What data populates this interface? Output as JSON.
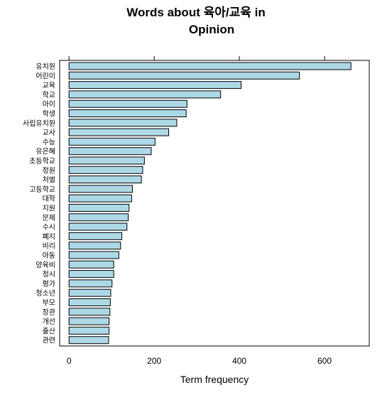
{
  "chart_data": {
    "type": "bar",
    "orientation": "horizontal",
    "title_line1": "Words about 육아/교육 in",
    "title_line2": "Opinion",
    "xlabel": "Term frequency",
    "ylabel": "",
    "xlim": [
      -22,
      705
    ],
    "xticks": [
      0,
      200,
      400,
      600
    ],
    "bar_color": "#add8e6",
    "bar_edge_color": "#000000",
    "categories": [
      "유치원",
      "어린이",
      "교육",
      "학교",
      "아이",
      "학생",
      "사립유치원",
      "교사",
      "수능",
      "유은혜",
      "초등학교",
      "정원",
      "처벌",
      "고등학교",
      "대학",
      "지원",
      "문제",
      "수시",
      "폐지",
      "비리",
      "아동",
      "양육비",
      "정시",
      "평가",
      "청소년",
      "부모",
      "장관",
      "개선",
      "출산",
      "관련"
    ],
    "values": [
      662,
      541,
      404,
      356,
      277,
      275,
      253,
      234,
      202,
      193,
      177,
      173,
      170,
      149,
      147,
      141,
      139,
      136,
      124,
      121,
      117,
      105,
      105,
      101,
      98,
      97,
      96,
      94,
      94,
      93
    ]
  }
}
